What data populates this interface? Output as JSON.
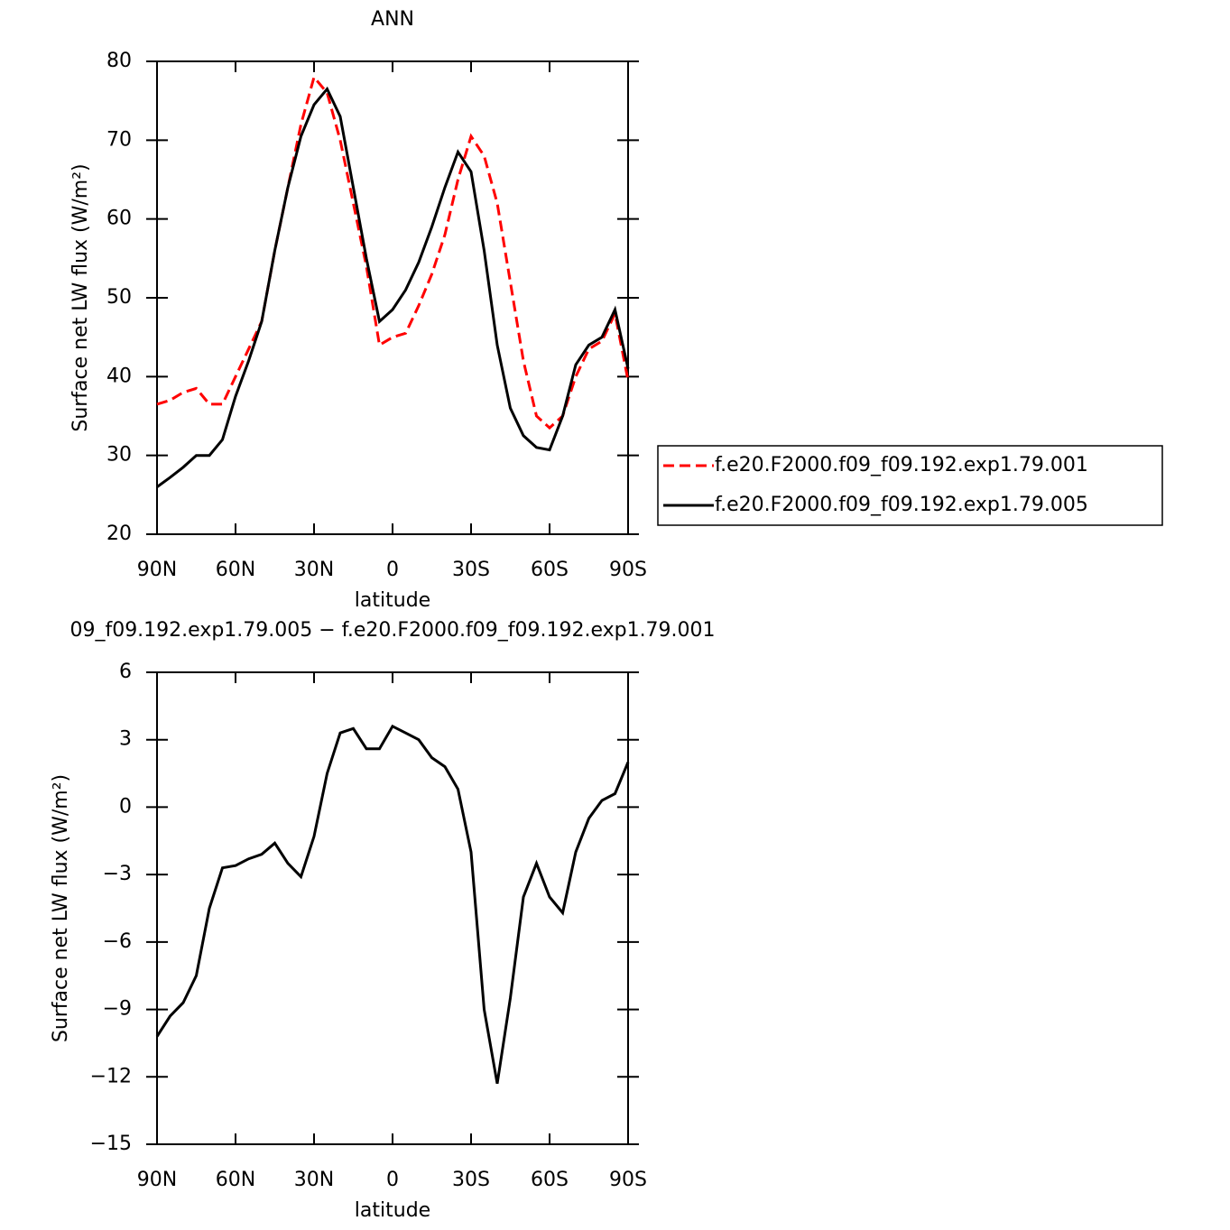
{
  "chart_data": [
    {
      "type": "line",
      "title": "ANN",
      "xlabel": "latitude",
      "ylabel": "Surface net LW flux (W/m²)",
      "x": [
        90,
        85,
        80,
        75,
        70,
        65,
        60,
        55,
        50,
        45,
        40,
        35,
        30,
        25,
        20,
        15,
        10,
        5,
        0,
        -5,
        -10,
        -15,
        -20,
        -25,
        -30,
        -35,
        -40,
        -45,
        -50,
        -55,
        -60,
        -65,
        -70,
        -75,
        -80,
        -85,
        -90
      ],
      "series": [
        {
          "name": "f.e20.F2000.f09_f09.192.exp1.79.001",
          "color": "#ff0000",
          "dashed": true,
          "values": [
            36.5,
            37,
            38,
            38.5,
            36.5,
            36.5,
            40,
            43.5,
            47,
            56,
            64,
            72,
            78,
            76,
            70,
            62,
            54,
            44,
            45,
            45.5,
            49,
            53,
            58,
            65,
            70.5,
            68,
            62,
            52,
            42,
            35,
            33.5,
            35,
            40,
            43.5,
            44.5,
            48,
            39.5
          ]
        },
        {
          "name": "f.e20.F2000.f09_f09.192.exp1.79.005",
          "color": "#000000",
          "dashed": false,
          "values": [
            26,
            27.2,
            28.5,
            30,
            30,
            32,
            37.5,
            42,
            47,
            56,
            64,
            70.5,
            74.5,
            76.5,
            73,
            64,
            55,
            47,
            48.5,
            51,
            54.5,
            59,
            64,
            68.5,
            66,
            56,
            44,
            36,
            32.5,
            31,
            30.7,
            35,
            41.5,
            44,
            45,
            48.5,
            41
          ]
        }
      ],
      "xlim": [
        90,
        -90
      ],
      "xticks": [
        {
          "value": 90,
          "label": "90N"
        },
        {
          "value": 60,
          "label": "60N"
        },
        {
          "value": 30,
          "label": "30N"
        },
        0,
        {
          "value": -30,
          "label": "30S"
        },
        {
          "value": -60,
          "label": "60S"
        },
        {
          "value": -90,
          "label": "90S"
        }
      ],
      "ylim": [
        20,
        80
      ],
      "yticks": [
        20,
        30,
        40,
        50,
        60,
        70,
        80
      ],
      "legend": "right"
    },
    {
      "type": "line",
      "title": "09_f09.192.exp1.79.005 − f.e20.F2000.f09_f09.192.exp1.79.001",
      "xlabel": "latitude",
      "ylabel": "Surface net LW flux (W/m²)",
      "x": [
        90,
        85,
        80,
        75,
        70,
        65,
        60,
        55,
        50,
        45,
        40,
        35,
        30,
        25,
        20,
        15,
        10,
        5,
        0,
        -5,
        -10,
        -15,
        -20,
        -25,
        -30,
        -35,
        -40,
        -45,
        -50,
        -55,
        -60,
        -65,
        -70,
        -75,
        -80,
        -85,
        -90
      ],
      "series": [
        {
          "color": "#000000",
          "dashed": false,
          "values": [
            -10.2,
            -9.3,
            -8.7,
            -7.5,
            -4.5,
            -2.7,
            -2.6,
            -2.3,
            -2.1,
            -1.6,
            -2.5,
            -3.1,
            -1.3,
            1.5,
            3.3,
            3.5,
            2.6,
            2.6,
            3.6,
            3.3,
            3.0,
            2.2,
            1.8,
            0.8,
            -2,
            -9,
            -12.3,
            -8.5,
            -4,
            -2.5,
            -4,
            -4.7,
            -2,
            -0.5,
            0.3,
            0.6,
            2
          ]
        }
      ],
      "xlim": [
        90,
        -90
      ],
      "xticks": [
        {
          "value": 90,
          "label": "90N"
        },
        {
          "value": 60,
          "label": "60N"
        },
        {
          "value": 30,
          "label": "30N"
        },
        0,
        {
          "value": -30,
          "label": "30S"
        },
        {
          "value": -60,
          "label": "60S"
        },
        {
          "value": -90,
          "label": "90S"
        }
      ],
      "ylim": [
        -15,
        6
      ],
      "yticks": [
        {
          "value": -15,
          "label": "−15"
        },
        {
          "value": -12,
          "label": "−12"
        },
        {
          "value": -9,
          "label": "−9"
        },
        {
          "value": -6,
          "label": "−6"
        },
        {
          "value": -3,
          "label": "−3"
        },
        0,
        3,
        6
      ]
    }
  ]
}
